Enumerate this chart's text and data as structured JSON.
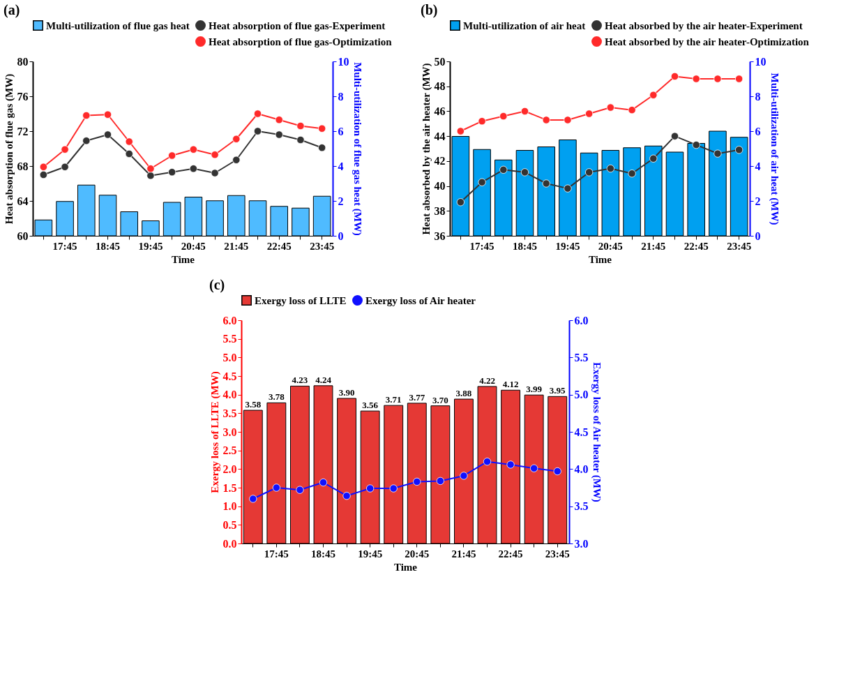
{
  "chart_data": [
    {
      "type": "bar",
      "title": "(a)",
      "xlabel": "Time",
      "ylabel": "Heat absorption of flue gas (MW)",
      "y2label": "Multi-utilization of flue gas heat (MW)",
      "categories": [
        null,
        "17:45",
        null,
        "18:45",
        null,
        "19:45",
        null,
        "20:45",
        null,
        "21:45",
        null,
        "22:45",
        null,
        "23:45"
      ],
      "ylim": [
        60,
        80
      ],
      "yticks": [
        60,
        64,
        68,
        72,
        76,
        80
      ],
      "y2lim": [
        0,
        10
      ],
      "y2ticks": [
        0,
        2,
        4,
        6,
        8,
        10
      ],
      "legend": "top",
      "marker": "circle",
      "line_style": "solid",
      "grid": false,
      "series": [
        {
          "name": "Multi-utilization of flue gas heat",
          "axis": "y2",
          "color": "#4fbbff",
          "values": [
            0.91,
            1.97,
            2.91,
            2.33,
            1.38,
            0.86,
            1.92,
            2.22,
            2.01,
            2.31,
            2.01,
            1.69,
            1.59,
            2.27
          ]
        },
        {
          "name": "Heat absorption of flue gas-Experiment",
          "type": "line",
          "color": "#333333",
          "values": [
            67.0,
            67.9,
            70.9,
            71.6,
            69.4,
            66.9,
            67.3,
            67.7,
            67.2,
            68.7,
            72.0,
            71.6,
            71.0,
            70.1
          ]
        },
        {
          "name": "Heat absorption of flue gas-Optimization",
          "type": "line",
          "color": "#ff2a2a",
          "values": [
            67.9,
            69.9,
            73.8,
            73.9,
            70.8,
            67.7,
            69.2,
            69.9,
            69.3,
            71.1,
            74.0,
            73.3,
            72.6,
            72.3
          ]
        }
      ]
    },
    {
      "type": "bar",
      "title": "(b)",
      "xlabel": "Time",
      "ylabel": "Heat absorbed by the air heater (MW)",
      "y2label": "Multi-utilization of air heat (MW)",
      "categories": [
        null,
        "17:45",
        null,
        "18:45",
        null,
        "19:45",
        null,
        "20:45",
        null,
        "21:45",
        null,
        "22:45",
        null,
        "23:45"
      ],
      "ylim": [
        36,
        50
      ],
      "yticks": [
        36,
        38,
        40,
        42,
        44,
        46,
        48,
        50
      ],
      "y2lim": [
        0,
        10
      ],
      "y2ticks": [
        0,
        2,
        4,
        6,
        8,
        10
      ],
      "legend": "top",
      "marker": "circle",
      "line_style": "solid",
      "grid": false,
      "series": [
        {
          "name": "Multi-utilization of air heat",
          "axis": "y2",
          "color": "#00a0f0",
          "values": [
            5.7,
            4.95,
            4.35,
            4.9,
            5.1,
            5.5,
            4.75,
            4.9,
            5.05,
            5.15,
            4.8,
            5.3,
            6.0,
            5.65
          ]
        },
        {
          "name": "Heat absorbed by the air heater-Experiment",
          "type": "line",
          "color": "#333333",
          "values": [
            38.7,
            40.3,
            41.3,
            41.1,
            40.2,
            39.8,
            41.1,
            41.4,
            41.0,
            42.2,
            44.0,
            43.3,
            42.6,
            42.9
          ]
        },
        {
          "name": "Heat absorbed by the air heater-Optimization",
          "type": "line",
          "color": "#ff2a2a",
          "values": [
            44.4,
            45.2,
            45.6,
            46.0,
            45.3,
            45.3,
            45.8,
            46.3,
            46.1,
            47.3,
            48.8,
            48.6,
            48.6,
            48.6
          ]
        }
      ]
    },
    {
      "type": "bar",
      "title": "(c)",
      "xlabel": "Time",
      "ylabel": "Exergy loss of LLTE (MW)",
      "y2label": "Exergy loss of Air heater (MW)",
      "categories": [
        null,
        "17:45",
        null,
        "18:45",
        null,
        "19:45",
        null,
        "20:45",
        null,
        "21:45",
        null,
        "22:45",
        null,
        "23:45"
      ],
      "ylim": [
        0,
        6
      ],
      "yticks": [
        {
          "value": 0,
          "label": "0.0"
        },
        0.5,
        {
          "value": 1,
          "label": "1.0"
        },
        1.5,
        {
          "value": 2,
          "label": "2.0"
        },
        2.5,
        {
          "value": 3,
          "label": "3.0"
        },
        3.5,
        {
          "value": 4,
          "label": "4.0"
        },
        4.5,
        {
          "value": 5,
          "label": "5.0"
        },
        5.5,
        {
          "value": 6,
          "label": "6.0"
        }
      ],
      "y2lim": [
        3,
        6
      ],
      "y2ticks": [
        {
          "value": 3,
          "label": "3.0"
        },
        3.5,
        {
          "value": 4,
          "label": "4.0"
        },
        4.5,
        {
          "value": 5,
          "label": "5.0"
        },
        5.5,
        {
          "value": 6,
          "label": "6.0"
        }
      ],
      "legend": "top",
      "marker": "circle",
      "line_style": "solid",
      "grid": false,
      "series": [
        {
          "name": "Exergy loss of LLTE",
          "color": "#e53935",
          "values": [
            3.58,
            3.78,
            4.23,
            4.24,
            3.9,
            3.56,
            3.71,
            3.77,
            3.7,
            3.88,
            4.22,
            4.12,
            3.99,
            3.95
          ],
          "value_labels": [
            "3.58",
            "3.78",
            "4.23",
            "4.24",
            "3.90",
            "3.56",
            "3.71",
            "3.77",
            "3.70",
            "3.88",
            "4.22",
            "4.12",
            "3.99",
            "3.95"
          ]
        },
        {
          "name": "Exergy loss of Air heater",
          "type": "line",
          "axis": "y2",
          "color": "#1010ff",
          "values": [
            3.6,
            3.75,
            3.72,
            3.82,
            3.64,
            3.74,
            3.74,
            3.83,
            3.84,
            3.91,
            4.1,
            4.06,
            4.01,
            3.97
          ]
        }
      ]
    }
  ]
}
